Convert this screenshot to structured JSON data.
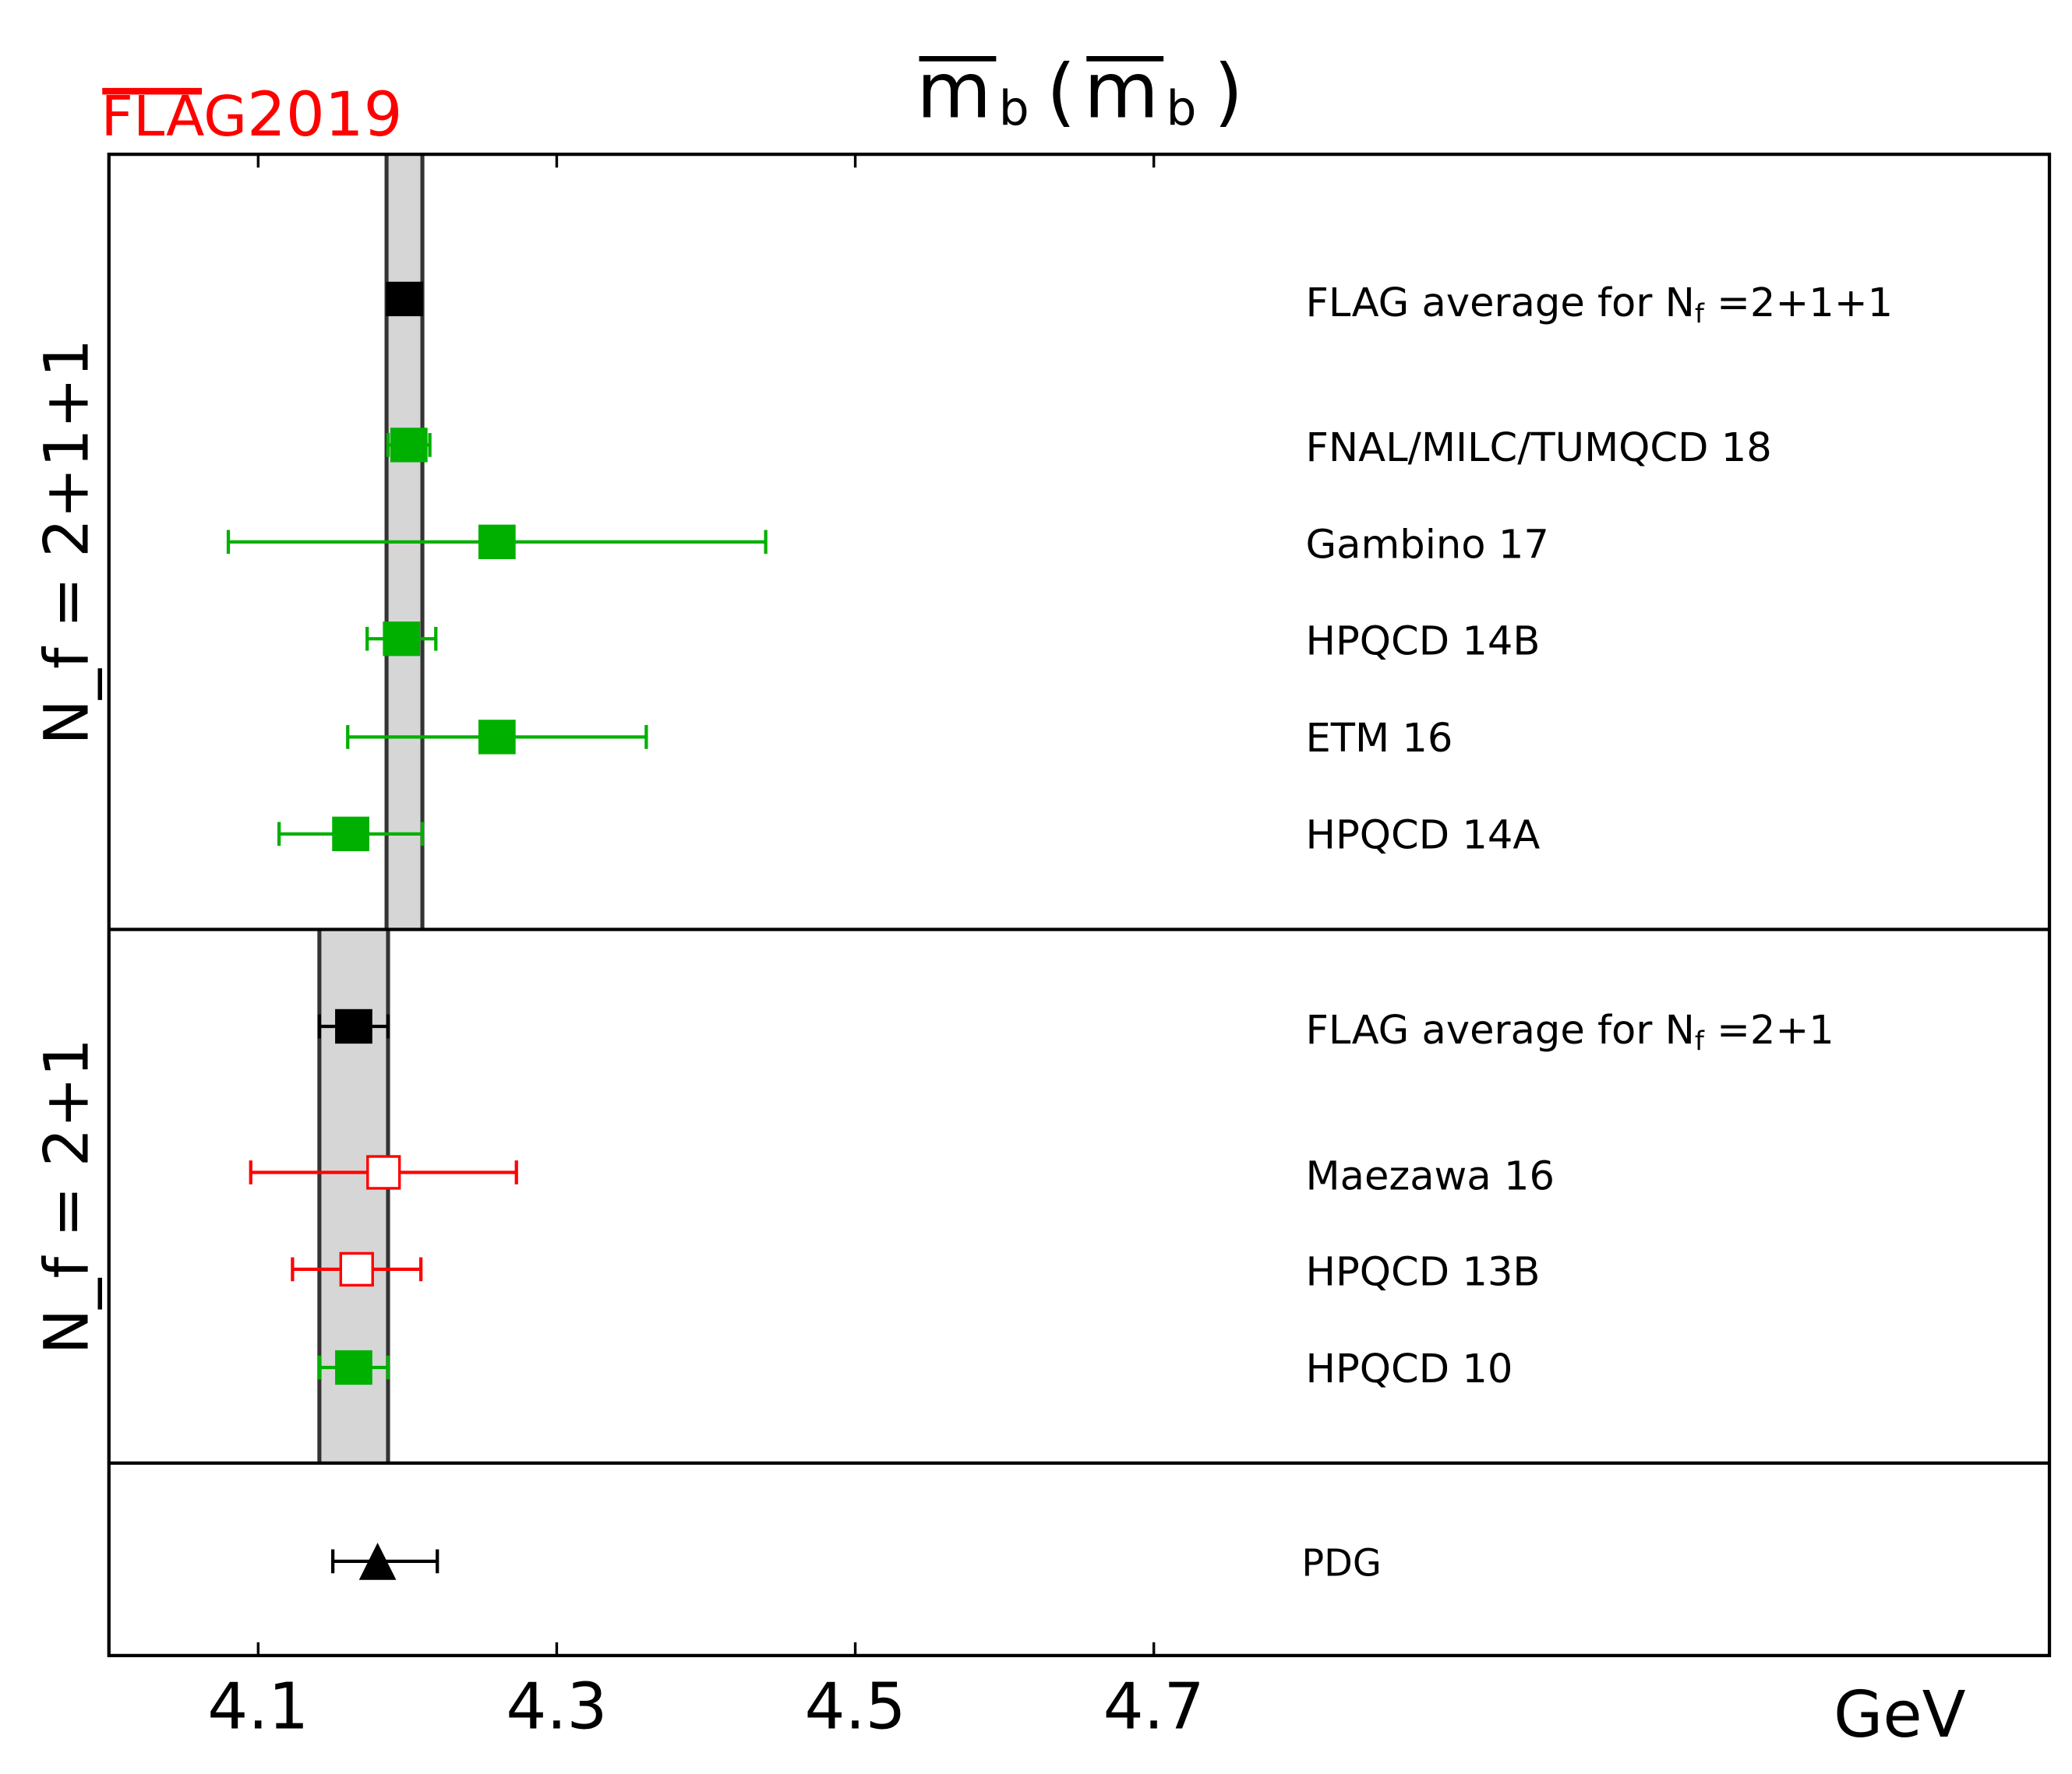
{
  "logo": {
    "text": "FLAG2019",
    "flag": "FLAG",
    "year": "2019",
    "color": "#ff0000"
  },
  "chart_data": {
    "type": "scatter",
    "title": "m̄_b(m̄_b)",
    "title_parts": {
      "m": "m",
      "sub": "b",
      "open": "(",
      "close": ")"
    },
    "xlabel": "GeV",
    "xlim": [
      4.0,
      5.3
    ],
    "xticks": [
      4.1,
      4.3,
      4.5,
      4.7
    ],
    "xtick_labels": [
      "4.1",
      "4.3",
      "4.5",
      "4.7"
    ],
    "grid": false,
    "colors": {
      "green": "#00b000",
      "red": "#ff0000",
      "black": "#000000",
      "band": "#d6d6d6"
    },
    "groups": [
      {
        "label": "N_f = 2+1+1",
        "label_parts": {
          "N": "N",
          "sub": "f",
          "rest": "=2+1+1"
        },
        "band": [
          4.186,
          4.21
        ],
        "points": [
          {
            "name": "FLAG average for N_f=2+1+1",
            "label_pre": "FLAG average for N",
            "label_sub": "f",
            "label_post": "=2+1+1",
            "value": 4.198,
            "err_lo": 0.012,
            "err_hi": 0.012,
            "marker": "square",
            "color": "black",
            "fill": "solid",
            "show_err": false
          },
          {
            "name": "FNAL/MILC/TUMQCD 18",
            "value": 4.201,
            "err_lo": 0.014,
            "err_hi": 0.014,
            "marker": "square",
            "color": "green",
            "fill": "solid"
          },
          {
            "name": "Gambino 17",
            "value": 4.26,
            "err_lo": 0.18,
            "err_hi": 0.18,
            "marker": "square",
            "color": "green",
            "fill": "solid"
          },
          {
            "name": "HPQCD 14B",
            "value": 4.196,
            "err_lo": 0.023,
            "err_hi": 0.023,
            "marker": "square",
            "color": "green",
            "fill": "solid"
          },
          {
            "name": "ETM 16",
            "value": 4.26,
            "err_lo": 0.1,
            "err_hi": 0.1,
            "marker": "square",
            "color": "green",
            "fill": "solid"
          },
          {
            "name": "HPQCD 14A",
            "value": 4.162,
            "err_lo": 0.048,
            "err_hi": 0.048,
            "marker": "square",
            "color": "green",
            "fill": "solid"
          }
        ]
      },
      {
        "label": "N_f = 2+1",
        "label_parts": {
          "N": "N",
          "sub": "f",
          "rest": "=2+1"
        },
        "band": [
          4.141,
          4.187
        ],
        "points": [
          {
            "name": "FLAG average for N_f=2+1",
            "label_pre": "FLAG average for N",
            "label_sub": "f",
            "label_post": "=2+1",
            "value": 4.164,
            "err_lo": 0.023,
            "err_hi": 0.023,
            "marker": "square",
            "color": "black",
            "fill": "solid"
          },
          {
            "name": "Maezawa 16",
            "value": 4.184,
            "err_lo": 0.089,
            "err_hi": 0.089,
            "marker": "square",
            "color": "red",
            "fill": "open"
          },
          {
            "name": "HPQCD 13B",
            "value": 4.166,
            "err_lo": 0.043,
            "err_hi": 0.043,
            "marker": "square",
            "color": "red",
            "fill": "open"
          },
          {
            "name": "HPQCD 10",
            "value": 4.164,
            "err_lo": 0.023,
            "err_hi": 0.023,
            "marker": "square",
            "color": "green",
            "fill": "solid"
          }
        ]
      },
      {
        "label": "",
        "points": [
          {
            "name": "PDG",
            "value": 4.18,
            "err_lo": 0.03,
            "err_hi": 0.04,
            "marker": "triangle",
            "color": "black",
            "fill": "solid"
          }
        ]
      }
    ]
  }
}
